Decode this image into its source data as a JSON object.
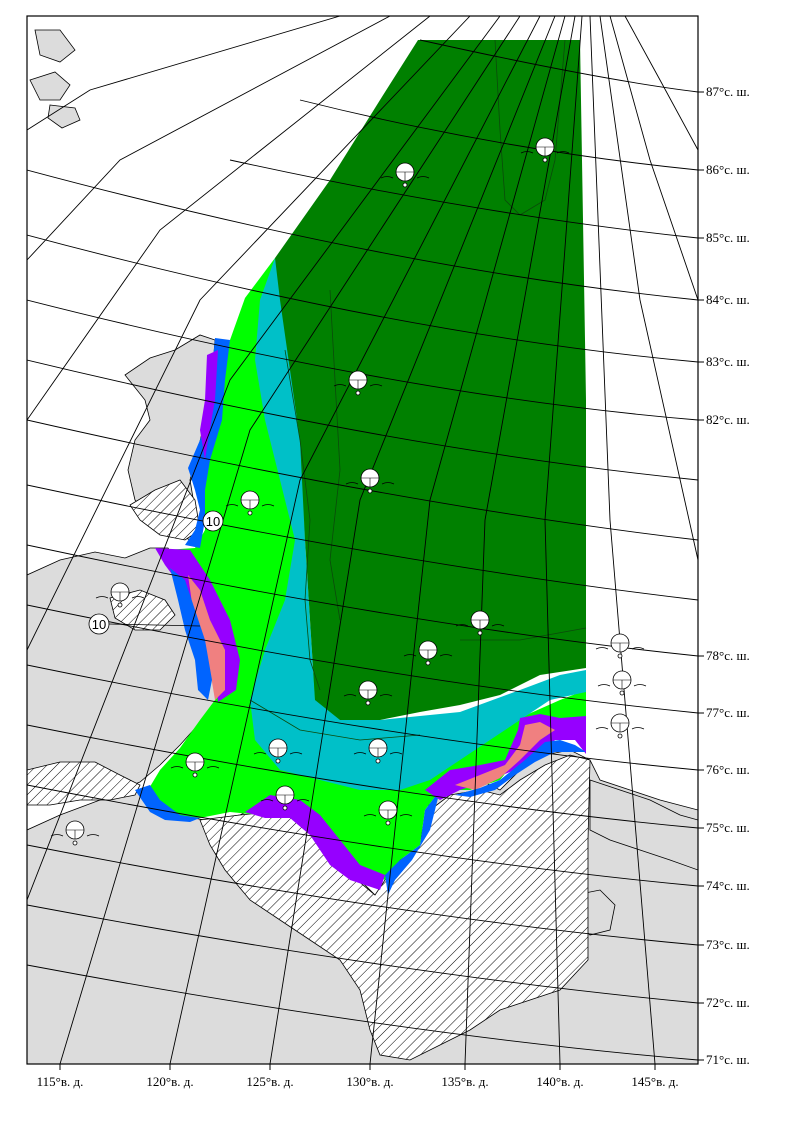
{
  "map": {
    "latitude_labels": [
      "87°с. ш.",
      "86°с. ш.",
      "85°с. ш.",
      "84°с. ш.",
      "83°с. ш.",
      "82°с. ш.",
      "78°с. ш.",
      "77°с. ш.",
      "76°с. ш.",
      "75°с. ш.",
      "74°с. ш.",
      "73°с. ш.",
      "72°с. ш.",
      "71°с. ш."
    ],
    "longitude_labels": [
      "115°в. д.",
      "120°в. д.",
      "125°в. д.",
      "130°в. д.",
      "135°в. д.",
      "140°в. д.",
      "145°в. д."
    ],
    "ice_labels": [
      "10",
      "10"
    ],
    "colors": {
      "land": "#dcdcdc",
      "fast_ice_hatched": "#ffffff",
      "dark_green_ice": "#008000",
      "cyan_ice": "#00c0c8",
      "bright_green_ice": "#00ff00",
      "blue_ice": "#0064ff",
      "violet_ice": "#9600ff",
      "pink_ice": "#f08080"
    }
  }
}
